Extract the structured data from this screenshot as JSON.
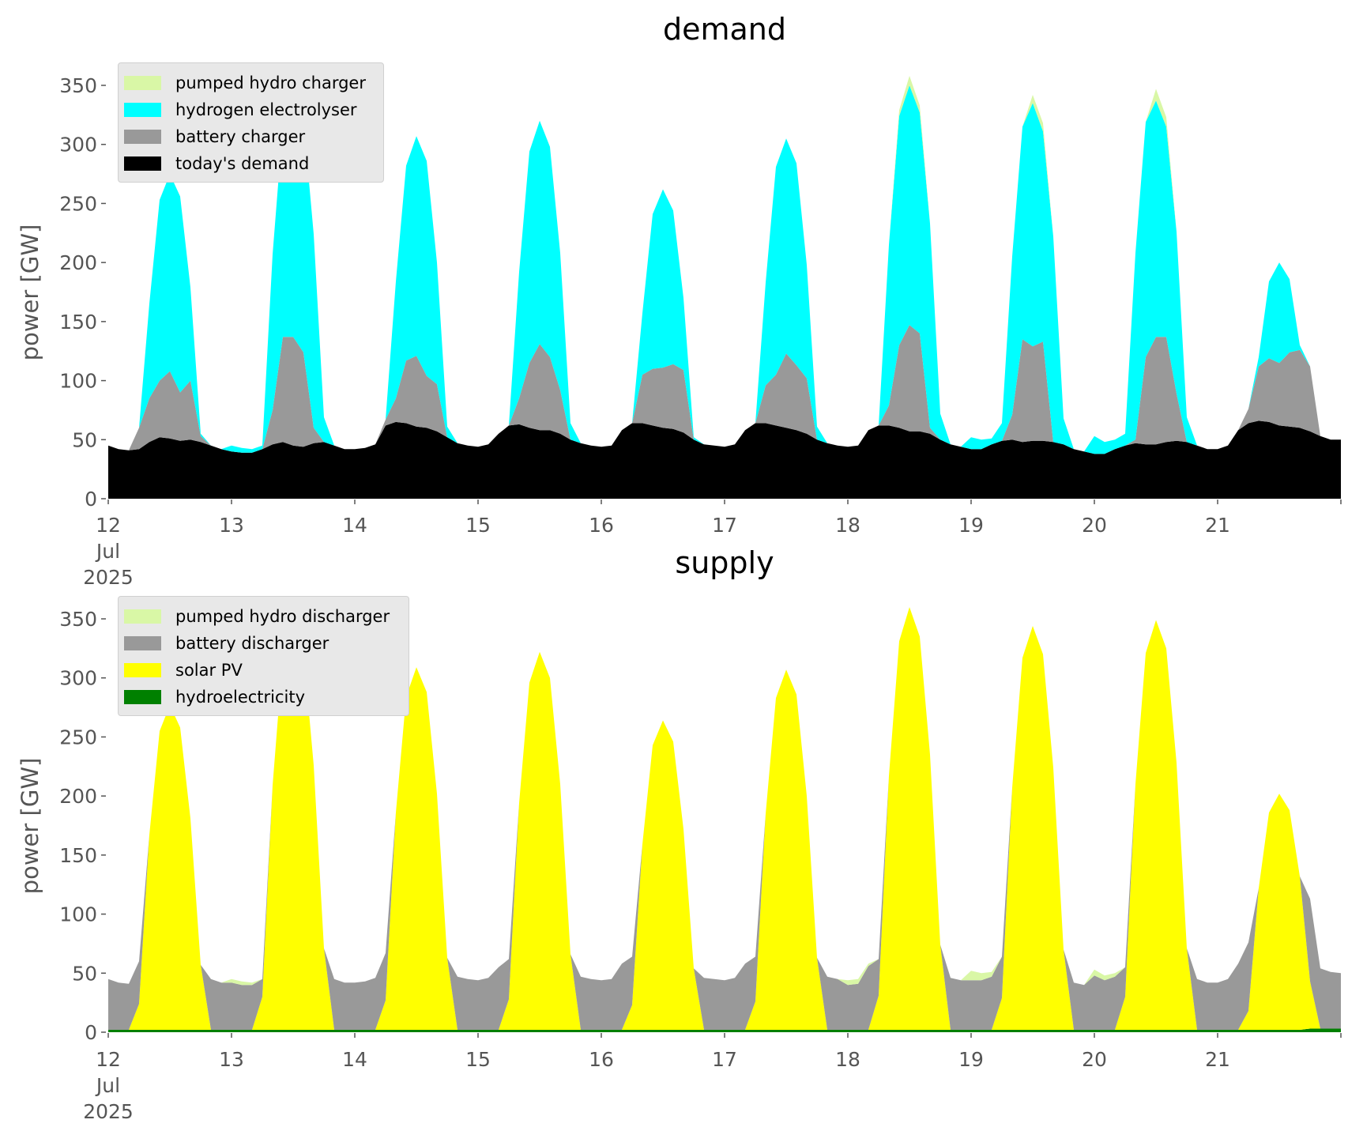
{
  "chart_data": [
    {
      "type": "area",
      "stacked": true,
      "title": "demand",
      "ylabel": "power [GW]",
      "xlabel": "",
      "x_start": "2025-07-12 00:00",
      "x_step_hours": 2,
      "ylim": [
        0,
        375
      ],
      "yticks": [
        0,
        50,
        100,
        150,
        200,
        250,
        300,
        350
      ],
      "xtick_labels": [
        [
          "12",
          "Jul",
          "2025"
        ],
        [
          "13"
        ],
        [
          "14"
        ],
        [
          "15"
        ],
        [
          "16"
        ],
        [
          "17"
        ],
        [
          "18"
        ],
        [
          "19"
        ],
        [
          "20"
        ],
        [
          "21"
        ]
      ],
      "grid": false,
      "legend_position": "top-left",
      "series": [
        {
          "name": "today's demand",
          "color": "#000000",
          "values": [
            45,
            42,
            41,
            42,
            48,
            52,
            51,
            49,
            50,
            48,
            45,
            42,
            40,
            39,
            39,
            42,
            46,
            48,
            45,
            44,
            47,
            48,
            45,
            42,
            42,
            43,
            46,
            62,
            65,
            64,
            61,
            60,
            57,
            52,
            47,
            45,
            44,
            46,
            55,
            62,
            63,
            60,
            58,
            58,
            55,
            50,
            47,
            45,
            44,
            45,
            58,
            64,
            64,
            62,
            60,
            59,
            56,
            50,
            46,
            45,
            44,
            46,
            58,
            64,
            64,
            62,
            60,
            58,
            55,
            50,
            47,
            45,
            44,
            45,
            58,
            62,
            62,
            60,
            57,
            57,
            55,
            50,
            46,
            44,
            42,
            42,
            46,
            49,
            50,
            48,
            49,
            49,
            48,
            46,
            42,
            40,
            38,
            38,
            42,
            45,
            47,
            46,
            46,
            48,
            49,
            48,
            45,
            42,
            42,
            45,
            58,
            64,
            66,
            65,
            62,
            61,
            60,
            57,
            53,
            50,
            50
          ]
        },
        {
          "name": "battery charger",
          "color": "#999999",
          "values": [
            0,
            0,
            0,
            18,
            37,
            48,
            57,
            41,
            50,
            5,
            0,
            0,
            0,
            0,
            0,
            0,
            29,
            89,
            92,
            80,
            13,
            0,
            0,
            0,
            0,
            0,
            0,
            5,
            20,
            53,
            60,
            44,
            40,
            0,
            0,
            0,
            0,
            0,
            0,
            0,
            22,
            55,
            73,
            62,
            37,
            0,
            0,
            0,
            0,
            0,
            0,
            0,
            41,
            48,
            51,
            55,
            53,
            0,
            0,
            0,
            0,
            0,
            0,
            0,
            32,
            43,
            63,
            55,
            47,
            0,
            0,
            0,
            0,
            0,
            0,
            0,
            17,
            70,
            90,
            83,
            5,
            0,
            0,
            0,
            0,
            0,
            0,
            0,
            21,
            87,
            80,
            84,
            0,
            0,
            0,
            0,
            0,
            0,
            0,
            0,
            3,
            74,
            91,
            89,
            40,
            0,
            0,
            0,
            0,
            0,
            0,
            12,
            46,
            54,
            53,
            63,
            66,
            55,
            0,
            0,
            0
          ]
        },
        {
          "name": "hydrogen electrolyser",
          "color": "#00ffff",
          "values": [
            0,
            0,
            0,
            0,
            80,
            153,
            167,
            166,
            79,
            2,
            0,
            0,
            5,
            4,
            3,
            3,
            132,
            180,
            208,
            197,
            164,
            21,
            0,
            0,
            0,
            0,
            0,
            0,
            99,
            165,
            186,
            182,
            103,
            9,
            0,
            0,
            0,
            0,
            0,
            0,
            107,
            179,
            189,
            178,
            116,
            14,
            0,
            0,
            0,
            0,
            0,
            0,
            52,
            131,
            151,
            130,
            61,
            2,
            0,
            0,
            0,
            0,
            0,
            0,
            87,
            176,
            182,
            171,
            96,
            11,
            0,
            0,
            0,
            0,
            0,
            0,
            136,
            194,
            203,
            187,
            173,
            22,
            0,
            0,
            10,
            8,
            5,
            15,
            134,
            180,
            206,
            178,
            174,
            22,
            0,
            0,
            15,
            10,
            8,
            10,
            158,
            199,
            200,
            178,
            137,
            21,
            0,
            0,
            0,
            0,
            0,
            0,
            8,
            65,
            85,
            62,
            4,
            0,
            0,
            0,
            0
          ]
        },
        {
          "name": "pumped hydro charger",
          "color": "#d9f7a6",
          "values": [
            0,
            0,
            0,
            0,
            0,
            0,
            0,
            0,
            0,
            0,
            0,
            0,
            0,
            0,
            0,
            0,
            0,
            0,
            0,
            0,
            0,
            0,
            0,
            0,
            0,
            0,
            0,
            0,
            0,
            0,
            0,
            0,
            0,
            0,
            0,
            0,
            0,
            0,
            0,
            0,
            0,
            0,
            0,
            0,
            0,
            0,
            0,
            0,
            0,
            0,
            0,
            0,
            0,
            0,
            0,
            0,
            0,
            0,
            0,
            0,
            0,
            0,
            0,
            0,
            0,
            0,
            0,
            0,
            0,
            0,
            0,
            0,
            0,
            0,
            0,
            0,
            0,
            5,
            8,
            6,
            0,
            0,
            0,
            0,
            0,
            0,
            0,
            0,
            0,
            0,
            7,
            7,
            0,
            0,
            0,
            0,
            0,
            0,
            0,
            0,
            0,
            0,
            10,
            8,
            0,
            0,
            0,
            0,
            0,
            0,
            0,
            0,
            0,
            0,
            0,
            0,
            0,
            0,
            0,
            0,
            0
          ]
        }
      ]
    },
    {
      "type": "area",
      "stacked": true,
      "title": "supply",
      "ylabel": "power [GW]",
      "xlabel": "",
      "x_start": "2025-07-12 00:00",
      "x_step_hours": 2,
      "ylim": [
        0,
        375
      ],
      "yticks": [
        0,
        50,
        100,
        150,
        200,
        250,
        300,
        350
      ],
      "xtick_labels": [
        [
          "12",
          "Jul",
          "2025"
        ],
        [
          "13"
        ],
        [
          "14"
        ],
        [
          "15"
        ],
        [
          "16"
        ],
        [
          "17"
        ],
        [
          "18"
        ],
        [
          "19"
        ],
        [
          "20"
        ],
        [
          "21"
        ]
      ],
      "grid": false,
      "legend_position": "top-left",
      "series": [
        {
          "name": "hydroelectricity",
          "color": "#008000",
          "values": [
            2,
            2,
            2,
            2,
            2,
            2,
            2,
            2,
            2,
            2,
            2,
            2,
            2,
            2,
            2,
            2,
            2,
            2,
            2,
            2,
            2,
            2,
            2,
            2,
            2,
            2,
            2,
            2,
            2,
            2,
            2,
            2,
            2,
            2,
            2,
            2,
            2,
            2,
            2,
            2,
            2,
            2,
            2,
            2,
            2,
            2,
            2,
            2,
            2,
            2,
            2,
            2,
            2,
            2,
            2,
            2,
            2,
            2,
            2,
            2,
            2,
            2,
            2,
            2,
            2,
            2,
            2,
            2,
            2,
            2,
            2,
            2,
            2,
            2,
            2,
            2,
            2,
            2,
            2,
            2,
            2,
            2,
            2,
            2,
            2,
            2,
            2,
            2,
            2,
            2,
            2,
            2,
            2,
            2,
            2,
            2,
            2,
            2,
            2,
            2,
            2,
            2,
            2,
            2,
            2,
            2,
            2,
            2,
            2,
            2,
            2,
            2,
            2,
            2,
            2,
            2,
            2,
            3,
            3,
            3,
            3
          ]
        },
        {
          "name": "solar PV",
          "color": "#ffff00",
          "values": [
            0,
            0,
            0,
            22,
            165,
            253,
            275,
            256,
            179,
            55,
            0,
            0,
            0,
            0,
            0,
            28,
            207,
            317,
            345,
            321,
            224,
            69,
            0,
            0,
            0,
            0,
            0,
            25,
            184,
            282,
            307,
            286,
            200,
            61,
            0,
            0,
            0,
            0,
            0,
            26,
            192,
            294,
            320,
            298,
            208,
            64,
            0,
            0,
            0,
            0,
            0,
            21,
            157,
            241,
            262,
            244,
            170,
            52,
            0,
            0,
            0,
            0,
            0,
            24,
            183,
            281,
            305,
            284,
            198,
            61,
            0,
            0,
            0,
            0,
            0,
            29,
            215,
            329,
            358,
            333,
            233,
            72,
            0,
            0,
            0,
            0,
            0,
            27,
            205,
            315,
            342,
            318,
            222,
            68,
            0,
            0,
            0,
            0,
            0,
            28,
            208,
            319,
            347,
            323,
            226,
            69,
            0,
            0,
            0,
            0,
            0,
            16,
            120,
            184,
            200,
            186,
            130,
            40,
            0,
            0,
            0
          ]
        },
        {
          "name": "battery discharger",
          "color": "#999999",
          "values": [
            43,
            40,
            39,
            36,
            0,
            0,
            0,
            0,
            0,
            0,
            43,
            40,
            40,
            38,
            38,
            15,
            0,
            0,
            0,
            0,
            0,
            0,
            43,
            40,
            40,
            41,
            44,
            40,
            0,
            0,
            0,
            0,
            0,
            0,
            45,
            43,
            42,
            44,
            53,
            34,
            0,
            0,
            0,
            0,
            0,
            0,
            45,
            43,
            42,
            43,
            56,
            41,
            0,
            0,
            0,
            0,
            0,
            0,
            44,
            43,
            42,
            44,
            56,
            38,
            0,
            0,
            0,
            0,
            0,
            0,
            45,
            43,
            38,
            39,
            54,
            31,
            0,
            0,
            0,
            0,
            0,
            0,
            44,
            42,
            42,
            42,
            45,
            35,
            0,
            0,
            0,
            0,
            0,
            0,
            40,
            38,
            46,
            42,
            45,
            25,
            0,
            0,
            0,
            0,
            0,
            0,
            43,
            40,
            40,
            43,
            56,
            58,
            0,
            0,
            0,
            0,
            0,
            70,
            51,
            48,
            47
          ]
        },
        {
          "name": "pumped hydro discharger",
          "color": "#d9f7a6",
          "values": [
            0,
            0,
            0,
            0,
            0,
            0,
            0,
            0,
            0,
            0,
            0,
            0,
            3,
            3,
            2,
            0,
            0,
            0,
            0,
            0,
            0,
            0,
            0,
            0,
            0,
            0,
            0,
            0,
            0,
            0,
            0,
            0,
            0,
            0,
            0,
            0,
            0,
            0,
            0,
            0,
            0,
            0,
            0,
            0,
            0,
            0,
            0,
            0,
            0,
            0,
            0,
            0,
            0,
            0,
            0,
            0,
            0,
            0,
            0,
            0,
            0,
            0,
            0,
            0,
            0,
            0,
            0,
            0,
            0,
            0,
            0,
            0,
            4,
            4,
            2,
            0,
            0,
            0,
            0,
            0,
            0,
            0,
            0,
            0,
            8,
            6,
            4,
            0,
            0,
            0,
            0,
            0,
            0,
            0,
            0,
            0,
            5,
            4,
            3,
            0,
            0,
            0,
            0,
            0,
            0,
            0,
            0,
            0,
            0,
            0,
            0,
            0,
            0,
            0,
            0,
            0,
            0,
            0,
            0,
            0,
            0
          ]
        }
      ]
    }
  ]
}
